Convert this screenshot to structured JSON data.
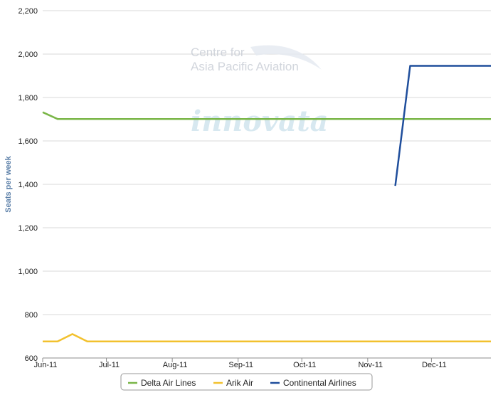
{
  "chart_data": {
    "type": "line",
    "title": "",
    "xlabel": "",
    "ylabel": "Seats per week",
    "ylim": [
      600,
      2200
    ],
    "y_ticks": [
      600,
      800,
      1000,
      1200,
      1400,
      1600,
      1800,
      2000,
      2200
    ],
    "y_tick_labels": [
      "600",
      "800",
      "1,000",
      "1,200",
      "1,400",
      "1,600",
      "1,800",
      "2,000",
      "2,200"
    ],
    "x_ticks": [
      "2011-06-01",
      "2011-07-01",
      "2011-08-01",
      "2011-09-01",
      "2011-10-01",
      "2011-11-01",
      "2011-12-01"
    ],
    "x_tick_labels": [
      "Jun-11",
      "Jul-11",
      "Aug-11",
      "Sep-11",
      "Oct-11",
      "Nov-11",
      "Dec-11"
    ],
    "xlim": [
      "2011-06-01",
      "2011-12-29"
    ],
    "grid": "horizontal",
    "legend_position": "bottom",
    "series": [
      {
        "name": "Delta Air Lines",
        "color": "#7ab648",
        "points": [
          [
            "2011-06-01",
            1732
          ],
          [
            "2011-06-08",
            1701
          ],
          [
            "2011-12-29",
            1701
          ]
        ]
      },
      {
        "name": "Arik Air",
        "color": "#f2c12e",
        "points": [
          [
            "2011-06-01",
            676
          ],
          [
            "2011-06-08",
            676
          ],
          [
            "2011-06-15",
            710
          ],
          [
            "2011-06-22",
            676
          ],
          [
            "2011-12-29",
            676
          ]
        ]
      },
      {
        "name": "Continental Airlines",
        "color": "#1f4e9c",
        "points": [
          [
            "2011-11-14",
            1393
          ],
          [
            "2011-11-21",
            1946
          ],
          [
            "2011-12-29",
            1946
          ]
        ]
      }
    ]
  },
  "watermark": {
    "line1": "Centre for",
    "line2": "Asia Pacific Aviation",
    "logo": "innovata"
  }
}
